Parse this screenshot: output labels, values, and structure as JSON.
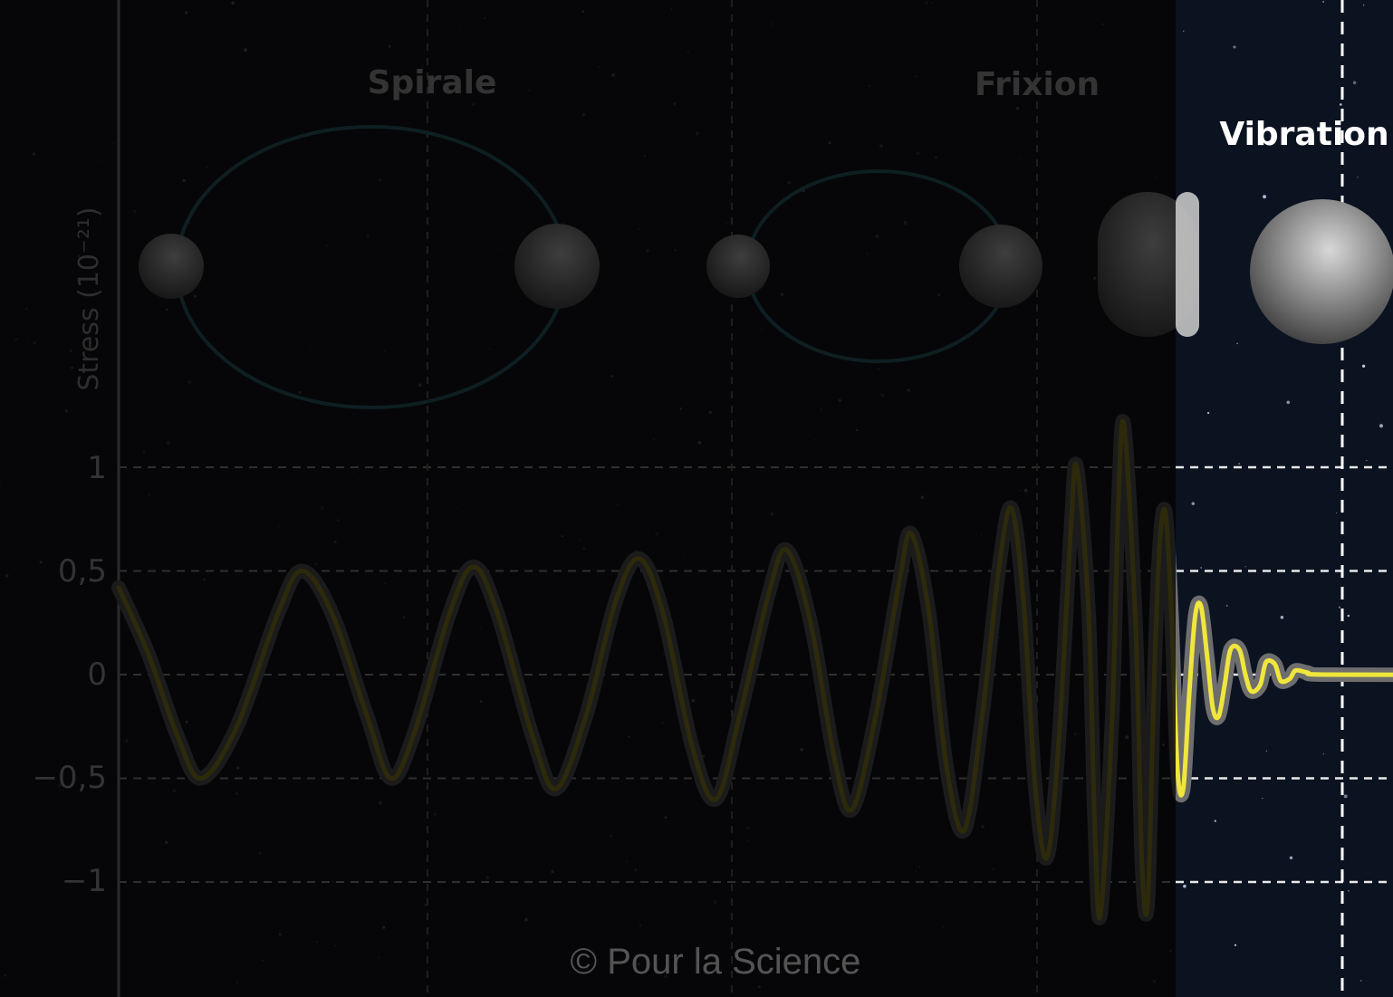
{
  "chart_data": {
    "type": "line",
    "title": "",
    "ylabel": "Stress (10⁻²¹)",
    "xlabel": "",
    "ylim": [
      -1.4,
      1.2
    ],
    "yticks": [
      {
        "value": 1,
        "label": "1"
      },
      {
        "value": 0.5,
        "label": "0,5"
      },
      {
        "value": 0,
        "label": "0"
      },
      {
        "value": -0.5,
        "label": "−0,5"
      },
      {
        "value": -1,
        "label": "−1"
      }
    ],
    "grid": true,
    "phases": [
      {
        "key": "spirale",
        "label": "Spirale",
        "highlighted": false
      },
      {
        "key": "frixion",
        "label": "Frixion",
        "highlighted": false
      },
      {
        "key": "vibration",
        "label": "Vibration",
        "highlighted": true
      }
    ],
    "series": [
      {
        "color": "#f0e63c",
        "points": [
          [
            0.0,
            0.42
          ],
          [
            0.05,
            0.1
          ],
          [
            0.1,
            -0.3
          ],
          [
            0.14,
            -0.5
          ],
          [
            0.2,
            -0.25
          ],
          [
            0.27,
            0.3
          ],
          [
            0.31,
            0.5
          ],
          [
            0.36,
            0.3
          ],
          [
            0.42,
            -0.2
          ],
          [
            0.46,
            -0.5
          ],
          [
            0.5,
            -0.28
          ],
          [
            0.56,
            0.3
          ],
          [
            0.6,
            0.52
          ],
          [
            0.64,
            0.3
          ],
          [
            0.7,
            -0.3
          ],
          [
            0.74,
            -0.55
          ],
          [
            0.79,
            -0.2
          ],
          [
            0.84,
            0.35
          ],
          [
            0.88,
            0.56
          ],
          [
            0.92,
            0.3
          ],
          [
            0.97,
            -0.35
          ],
          [
            1.01,
            -0.6
          ],
          [
            1.05,
            -0.2
          ],
          [
            1.1,
            0.4
          ],
          [
            1.13,
            0.6
          ],
          [
            1.17,
            0.25
          ],
          [
            1.21,
            -0.4
          ],
          [
            1.24,
            -0.65
          ],
          [
            1.28,
            -0.2
          ],
          [
            1.32,
            0.45
          ],
          [
            1.34,
            0.68
          ],
          [
            1.37,
            0.3
          ],
          [
            1.4,
            -0.45
          ],
          [
            1.43,
            -0.75
          ],
          [
            1.46,
            -0.2
          ],
          [
            1.49,
            0.55
          ],
          [
            1.51,
            0.8
          ],
          [
            1.53,
            0.35
          ],
          [
            1.55,
            -0.55
          ],
          [
            1.57,
            -0.88
          ],
          [
            1.59,
            -0.3
          ],
          [
            1.61,
            0.7
          ],
          [
            1.62,
            1.0
          ],
          [
            1.64,
            0.3
          ],
          [
            1.65,
            -0.7
          ],
          [
            1.66,
            -1.16
          ],
          [
            1.68,
            -0.2
          ],
          [
            1.69,
            0.8
          ],
          [
            1.7,
            1.2
          ],
          [
            1.72,
            0.2
          ],
          [
            1.73,
            -0.9
          ],
          [
            1.74,
            -1.1
          ],
          [
            1.75,
            -0.1
          ],
          [
            1.76,
            0.62
          ],
          [
            1.77,
            0.78
          ],
          [
            1.78,
            0.3
          ],
          [
            1.79,
            -0.45
          ],
          [
            1.8,
            -0.55
          ],
          [
            1.81,
            -0.1
          ],
          [
            1.82,
            0.28
          ],
          [
            1.83,
            0.33
          ],
          [
            1.84,
            0.1
          ],
          [
            1.85,
            -0.16
          ],
          [
            1.86,
            -0.2
          ],
          [
            1.87,
            -0.05
          ],
          [
            1.88,
            0.12
          ],
          [
            1.895,
            0.12
          ],
          [
            1.905,
            0.0
          ],
          [
            1.915,
            -0.08
          ],
          [
            1.93,
            -0.05
          ],
          [
            1.94,
            0.06
          ],
          [
            1.955,
            0.05
          ],
          [
            1.965,
            -0.03
          ],
          [
            1.98,
            -0.02
          ],
          [
            1.99,
            0.02
          ],
          [
            2.01,
            0.01
          ],
          [
            2.04,
            0.0
          ],
          [
            2.3,
            0.0
          ]
        ]
      }
    ]
  },
  "credit": "© Pour la Science"
}
